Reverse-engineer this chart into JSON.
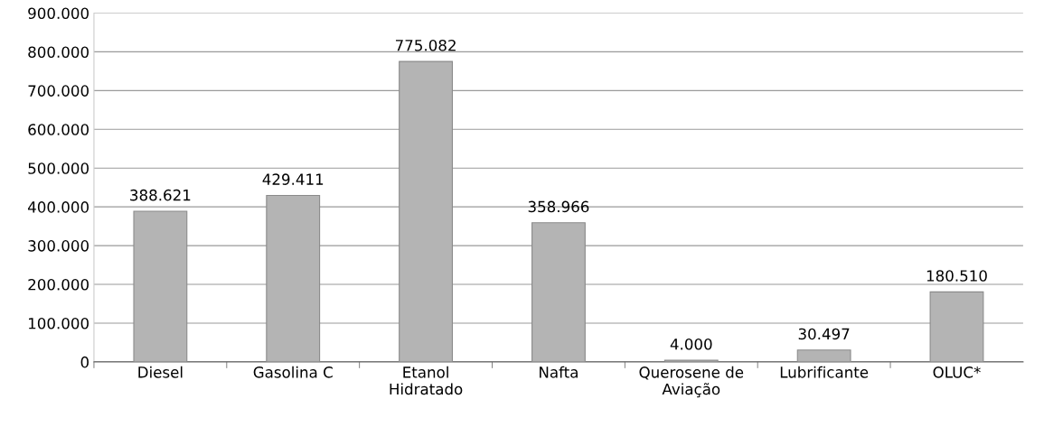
{
  "chart_data": {
    "type": "bar",
    "categories": [
      "Diesel",
      "Gasolina C",
      "Etanol\nHidratado",
      "Nafta",
      "Querosene de\nAviação",
      "Lubrificante",
      "OLUC*"
    ],
    "values": [
      388621,
      429411,
      775082,
      358966,
      4000,
      30497,
      180510
    ],
    "value_labels": [
      "388.621",
      "429.411",
      "775.082",
      "358.966",
      "4.000",
      "30.497",
      "180.510"
    ],
    "color": "#b4b4b4",
    "ylim": [
      0,
      900000
    ],
    "yticks": [
      {
        "value": 0,
        "label": "0"
      },
      {
        "value": 100000,
        "label": "100.000"
      },
      {
        "value": 200000,
        "label": "200.000"
      },
      {
        "value": 300000,
        "label": "300.000"
      },
      {
        "value": 400000,
        "label": "400.000"
      },
      {
        "value": 500000,
        "label": "500.000"
      },
      {
        "value": 600000,
        "label": "600.000"
      },
      {
        "value": 700000,
        "label": "700.000"
      },
      {
        "value": 800000,
        "label": "800.000"
      },
      {
        "value": 900000,
        "label": "900.000"
      }
    ],
    "grid": "y",
    "legend": false
  }
}
